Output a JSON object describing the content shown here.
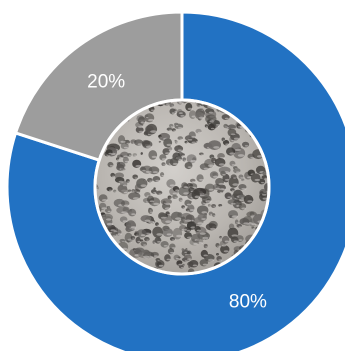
{
  "chart_data": {
    "type": "pie",
    "variant": "donut",
    "categories": [
      "",
      ""
    ],
    "values": [
      80,
      20
    ],
    "labels": [
      "80%",
      "20%"
    ],
    "colors": [
      "#2272c3",
      "#9d9d9d"
    ],
    "center_image": "porous-foam-concrete-texture",
    "title": "",
    "legend": "none"
  }
}
